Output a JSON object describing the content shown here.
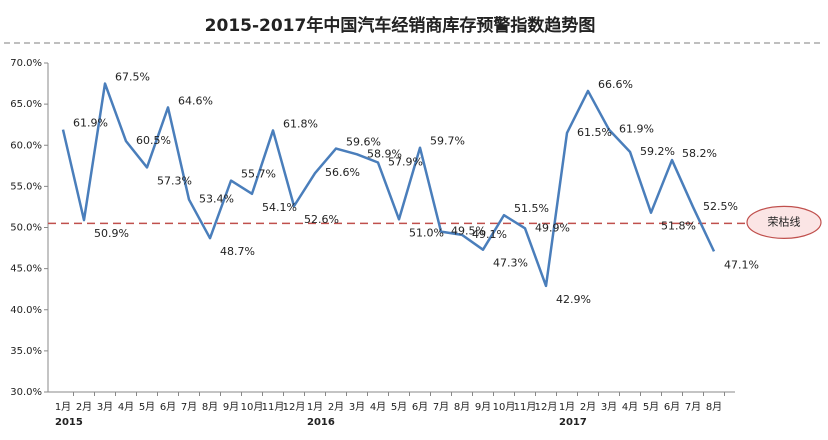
{
  "chart_data": {
    "type": "line",
    "title": "2015-2017年中国汽车经销商库存预警指数趋势图",
    "categories": [
      "1月",
      "2月",
      "3月",
      "4月",
      "5月",
      "6月",
      "7月",
      "8月",
      "9月",
      "10月",
      "11月",
      "12月",
      "1月",
      "2月",
      "3月",
      "4月",
      "5月",
      "6月",
      "7月",
      "8月",
      "9月",
      "10月",
      "11月",
      "12月",
      "1月",
      "2月",
      "3月",
      "4月",
      "5月",
      "6月",
      "7月",
      "8月"
    ],
    "year_categories": [
      "2015",
      null,
      null,
      null,
      null,
      null,
      null,
      null,
      null,
      null,
      null,
      null,
      "2016",
      null,
      null,
      null,
      null,
      null,
      null,
      null,
      null,
      null,
      null,
      null,
      "2017",
      null,
      null,
      null,
      null,
      null,
      null,
      null
    ],
    "series": [
      {
        "name": "库存预警指数",
        "color": "#4a7ebb",
        "values": [
          61.9,
          50.9,
          67.5,
          60.5,
          57.3,
          64.6,
          53.4,
          48.7,
          55.7,
          54.1,
          61.8,
          52.6,
          56.6,
          59.6,
          58.9,
          57.9,
          51.0,
          59.7,
          49.5,
          49.1,
          47.3,
          51.5,
          49.9,
          42.9,
          61.5,
          66.6,
          61.9,
          59.2,
          51.8,
          58.2,
          52.5,
          47.1
        ],
        "value_labels": [
          "61.9%",
          "50.9%",
          "67.5%",
          "60.5%",
          "57.3%",
          "64.6%",
          "53.4%",
          "48.7%",
          "55.7%",
          "54.1%",
          "61.8%",
          "52.6%",
          "56.6%",
          "59.6%",
          "58.9%",
          "57.9%",
          "51.0%",
          "59.7%",
          "49.5%",
          "49.1%",
          "47.3%",
          "51.5%",
          "49.9%",
          "42.9%",
          "61.5%",
          "66.6%",
          "61.9%",
          "59.2%",
          "51.8%",
          "58.2%",
          "52.5%",
          "47.1%"
        ]
      }
    ],
    "ylim": [
      30,
      70
    ],
    "yticks": [
      {
        "value": 30,
        "label": "30.0%"
      },
      {
        "value": 35,
        "label": "35.0%"
      },
      {
        "value": 40,
        "label": "40.0%"
      },
      {
        "value": 45,
        "label": "45.0%"
      },
      {
        "value": 50,
        "label": "50.0%"
      },
      {
        "value": 55,
        "label": "55.0%"
      },
      {
        "value": 60,
        "label": "60.0%"
      },
      {
        "value": 65,
        "label": "65.0%"
      },
      {
        "value": 70,
        "label": "70.0%"
      }
    ],
    "reference_line": {
      "label": "荣枯线",
      "value": 50.5,
      "color": "#c0504d"
    }
  }
}
